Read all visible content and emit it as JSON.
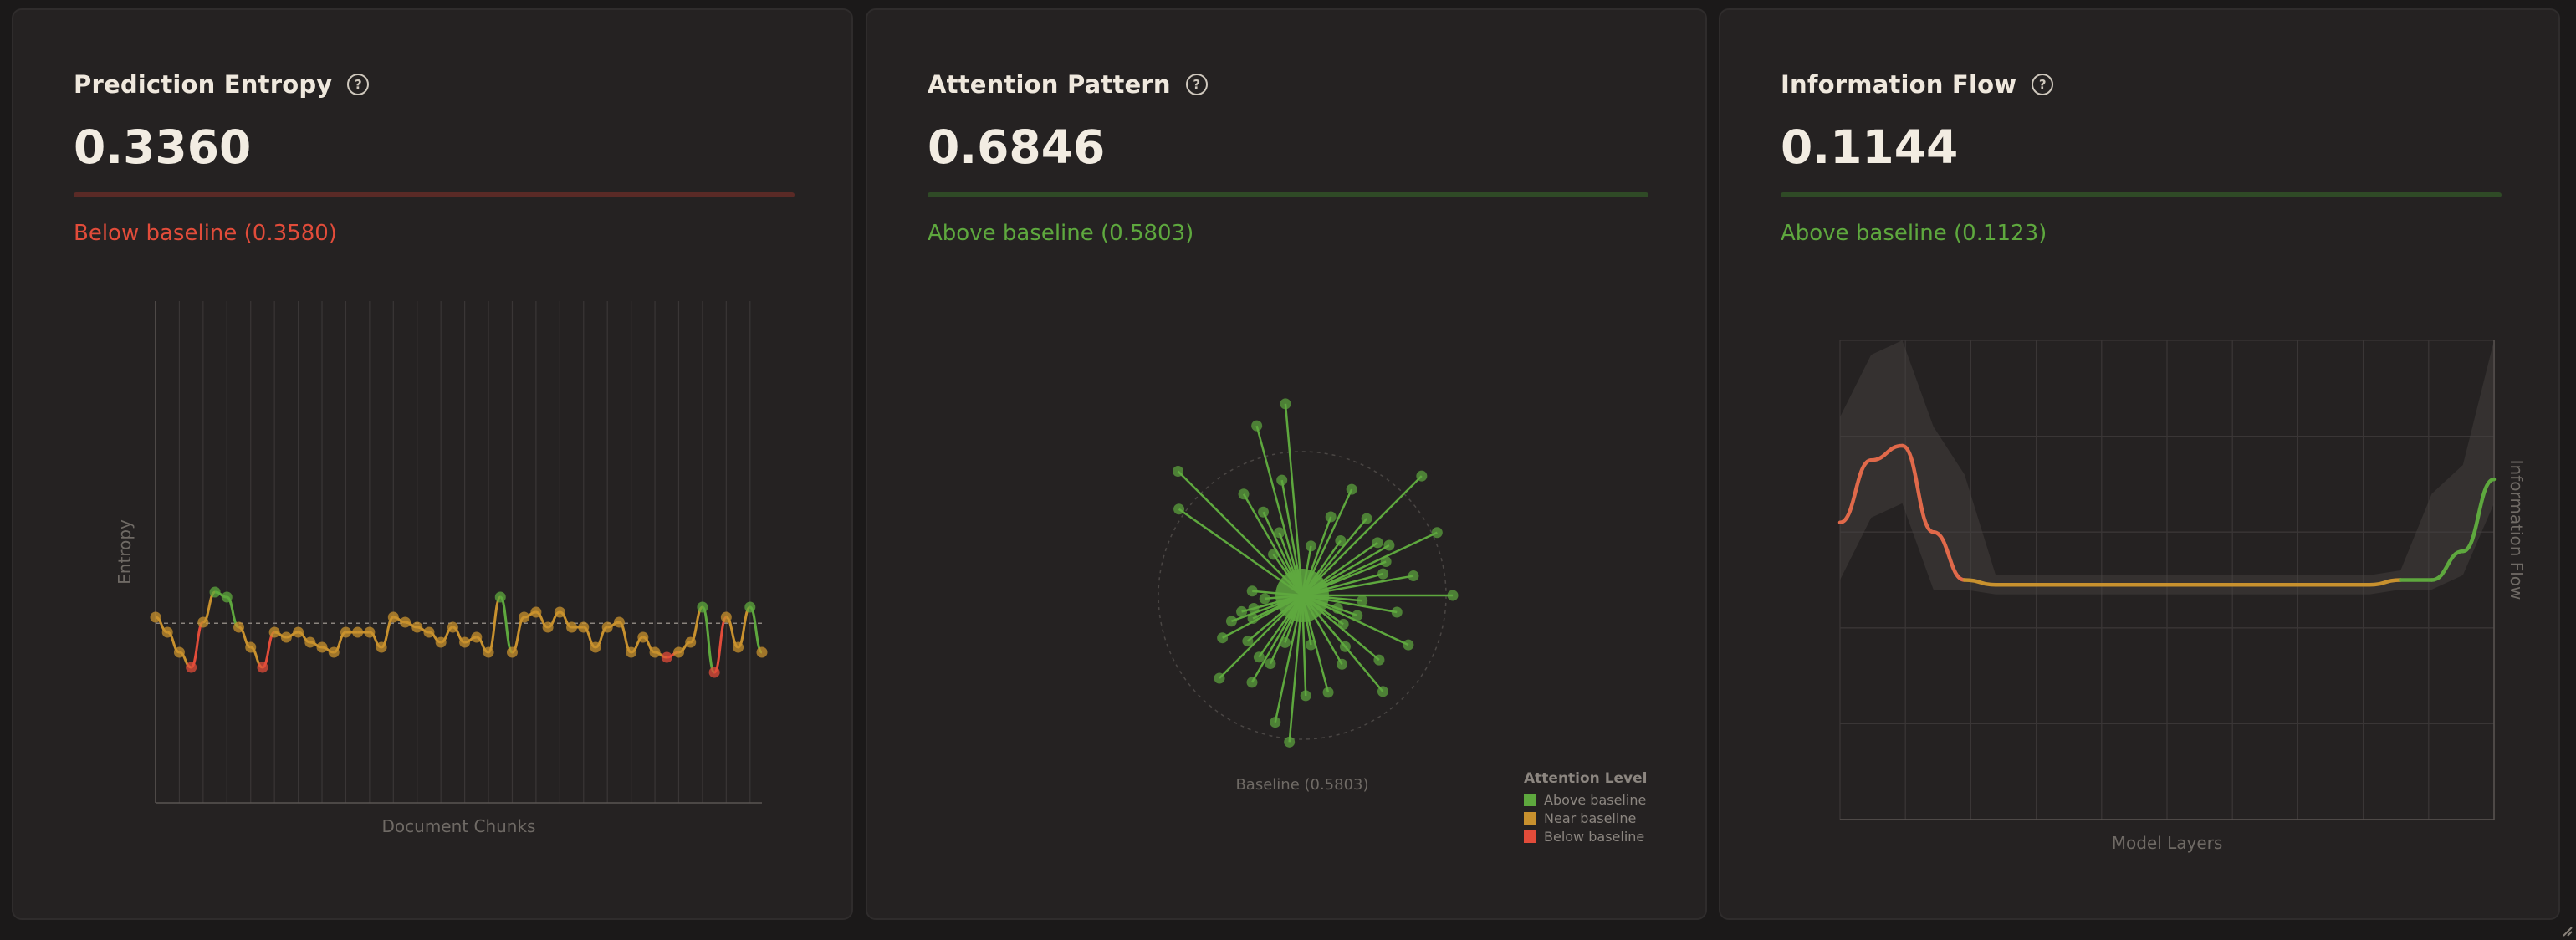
{
  "colors": {
    "above": "#5ea83e",
    "near": "#c8912e",
    "below": "#e24c3a",
    "flow_red": "#e0694a"
  },
  "cards": [
    {
      "title": "Prediction Entropy",
      "help_icon": "question-circle-icon",
      "value": "0.3360",
      "status": "Below baseline (0.3580)",
      "status_level": "below",
      "bar_color": "#5a2a26",
      "bar_fill": 1.0
    },
    {
      "title": "Attention Pattern",
      "help_icon": "question-circle-icon",
      "value": "0.6846",
      "status": "Above baseline (0.5803)",
      "status_level": "above",
      "bar_color": "#2f4a26",
      "bar_fill": 1.0
    },
    {
      "title": "Information Flow",
      "help_icon": "question-circle-icon",
      "value": "0.1144",
      "status": "Above baseline (0.1123)",
      "status_level": "above",
      "bar_color": "#2f4a26",
      "bar_fill": 1.0
    }
  ],
  "chart_data": [
    {
      "type": "line",
      "xlabel": "Document Chunks",
      "ylabel": "Entropy",
      "baseline": 0.358,
      "ylim": [
        0,
        1
      ],
      "values": [
        0.37,
        0.34,
        0.3,
        0.27,
        0.36,
        0.42,
        0.41,
        0.35,
        0.31,
        0.27,
        0.34,
        0.33,
        0.34,
        0.32,
        0.31,
        0.3,
        0.34,
        0.34,
        0.34,
        0.31,
        0.37,
        0.36,
        0.35,
        0.34,
        0.32,
        0.35,
        0.32,
        0.33,
        0.3,
        0.41,
        0.3,
        0.37,
        0.38,
        0.35,
        0.38,
        0.35,
        0.35,
        0.31,
        0.35,
        0.36,
        0.3,
        0.33,
        0.3,
        0.29,
        0.3,
        0.32,
        0.39,
        0.26,
        0.37,
        0.31,
        0.39,
        0.3
      ]
    },
    {
      "type": "scatter",
      "baseline_label": "Baseline (0.5803)",
      "legend_title": "Attention Level",
      "legend": [
        "Above baseline",
        "Near baseline",
        "Below baseline"
      ],
      "rays": [
        [
          -5,
          230
        ],
        [
          -15,
          210
        ],
        [
          -45,
          210
        ],
        [
          -55,
          180
        ],
        [
          45,
          202
        ],
        [
          65,
          178
        ],
        [
          -10,
          140
        ],
        [
          -30,
          140
        ],
        [
          25,
          140
        ],
        [
          40,
          120
        ],
        [
          55,
          110
        ],
        [
          75,
          100
        ],
        [
          100,
          115
        ],
        [
          95,
          72
        ],
        [
          110,
          70
        ],
        [
          68,
          108
        ],
        [
          60,
          120
        ],
        [
          80,
          135
        ],
        [
          90,
          180
        ],
        [
          115,
          140
        ],
        [
          130,
          120
        ],
        [
          140,
          150
        ],
        [
          150,
          95
        ],
        [
          165,
          120
        ],
        [
          178,
          120
        ],
        [
          185,
          176
        ],
        [
          192,
          155
        ],
        [
          210,
          120
        ],
        [
          225,
          140
        ],
        [
          215,
          90
        ],
        [
          230,
          85
        ],
        [
          245,
          65
        ],
        [
          255,
          60
        ],
        [
          265,
          45
        ],
        [
          275,
          60
        ],
        [
          255,
          75
        ],
        [
          242,
          108
        ],
        [
          250,
          90
        ],
        [
          205,
          90
        ],
        [
          200,
          60
        ],
        [
          170,
          60
        ],
        [
          140,
          80
        ],
        [
          125,
          60
        ],
        [
          110,
          45
        ],
        [
          10,
          60
        ],
        [
          35,
          80
        ],
        [
          -20,
          80
        ],
        [
          -35,
          60
        ],
        [
          -25,
          110
        ],
        [
          20,
          100
        ]
      ]
    },
    {
      "type": "area",
      "xlabel": "Model Layers",
      "ylabel": "Information Flow",
      "series": [
        {
          "values": [
            0.62,
            0.75,
            0.78,
            0.6,
            0.5,
            0.49,
            0.49,
            0.49,
            0.49,
            0.49,
            0.49,
            0.49,
            0.49,
            0.49,
            0.49,
            0.49,
            0.49,
            0.49,
            0.5,
            0.5,
            0.56,
            0.71
          ]
        }
      ]
    }
  ]
}
